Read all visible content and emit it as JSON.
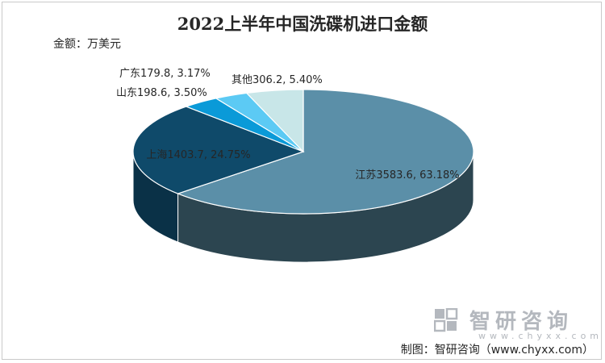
{
  "chart_data": {
    "type": "pie",
    "title": "2022上半年中国洗碟机进口金额",
    "unit_label": "金额：万美元",
    "slices": [
      {
        "name": "江苏",
        "value": 3583.6,
        "percent": 63.18,
        "label": "江苏3583.6, 63.18%",
        "color": "#5b8fa8",
        "side_color": "#2c4550"
      },
      {
        "name": "上海",
        "value": 1403.7,
        "percent": 24.75,
        "label": "上海1403.7, 24.75%",
        "color": "#0f4a6a",
        "side_color": "#0a3147"
      },
      {
        "name": "山东",
        "value": 198.6,
        "percent": 3.5,
        "label": "山东198.6, 3.50%",
        "color": "#0a9ad8",
        "side_color": "#06618a"
      },
      {
        "name": "广东",
        "value": 179.8,
        "percent": 3.17,
        "label": "广东179.8, 3.17%",
        "color": "#5ccaf4",
        "side_color": "#3b8aa8"
      },
      {
        "name": "其他",
        "value": 306.2,
        "percent": 5.4,
        "label": "其他306.2, 5.40%",
        "color": "#c8e6e8",
        "side_color": "#8fb0b2"
      }
    ]
  },
  "branding": {
    "logo_name": "智研咨询",
    "logo_url": "www.chyxx.com",
    "source": "制图：智研咨询（www.chyxx.com）"
  }
}
